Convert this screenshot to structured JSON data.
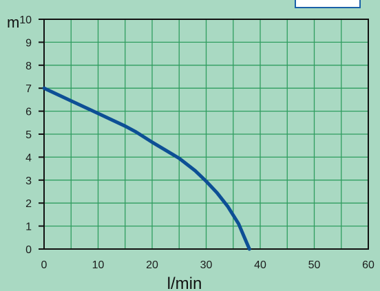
{
  "chart_data": {
    "type": "line",
    "xlabel": "l/min",
    "ylabel": "m",
    "xlim": [
      0,
      60
    ],
    "ylim": [
      0,
      10
    ],
    "x_ticks": [
      0,
      10,
      20,
      30,
      40,
      50,
      60
    ],
    "y_ticks": [
      0,
      1,
      2,
      3,
      4,
      5,
      6,
      7,
      8,
      9,
      10
    ],
    "grid_step_x": 5,
    "grid_step_y": 1,
    "grid": true,
    "series": [
      {
        "color": "#0d4f95",
        "x": [
          0,
          5,
          10,
          15,
          17,
          20,
          25,
          28,
          30,
          32,
          34,
          36,
          37,
          38
        ],
        "y": [
          7.0,
          6.45,
          5.9,
          5.35,
          5.1,
          4.65,
          3.95,
          3.4,
          2.95,
          2.45,
          1.85,
          1.1,
          0.55,
          0
        ]
      }
    ]
  },
  "colors": {
    "background": "#a9d9c2",
    "grid": "#2f9d5f",
    "frame": "#111111",
    "curve": "#0d4f95",
    "tab_border": "#1a60a8"
  }
}
